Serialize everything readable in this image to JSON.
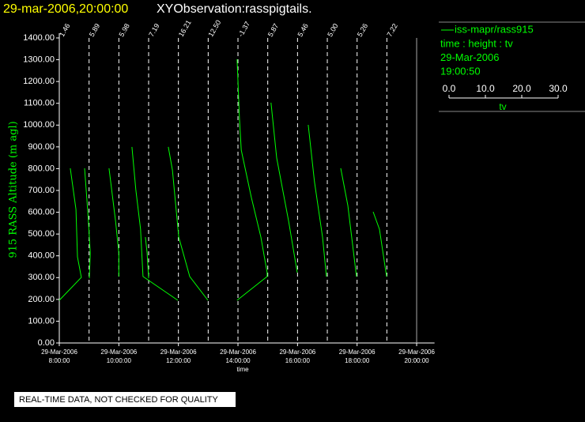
{
  "chart_data": {
    "type": "line",
    "title": "29-mar-2006,20:00:00",
    "subtitle": "XYObservation:rasspigtails.",
    "y_label": "915 RASS Altitude (m agl)",
    "x_label": "time",
    "footer": "REAL-TIME DATA, NOT CHECKED FOR QUALITY",
    "xlim": [
      8,
      20.6
    ],
    "ylim": [
      0,
      1400
    ],
    "xticks": [
      {
        "value": 8,
        "label": "29-Mar-2006 8:00:00"
      },
      {
        "value": 10,
        "label": "29-Mar-2006 10:00:00"
      },
      {
        "value": 12,
        "label": "29-Mar-2006 12:00:00"
      },
      {
        "value": 14,
        "label": "29-Mar-2006 14:00:00"
      },
      {
        "value": 16,
        "label": "29-Mar-2006 16:00:00"
      },
      {
        "value": 18,
        "label": "29-Mar-2006 18:00:00"
      },
      {
        "value": 20,
        "label": "29-Mar-2006 20:00:00"
      }
    ],
    "yticks": [
      {
        "value": 0,
        "label": "0.00"
      },
      {
        "value": 100,
        "label": "100.00"
      },
      {
        "value": 200,
        "label": "200.00"
      },
      {
        "value": 300,
        "label": "300.00"
      },
      {
        "value": 400,
        "label": "400.00"
      },
      {
        "value": 500,
        "label": "500.00"
      },
      {
        "value": 600,
        "label": "600.00"
      },
      {
        "value": 700,
        "label": "700.00"
      },
      {
        "value": 800,
        "label": "800.00"
      },
      {
        "value": 900,
        "label": "900.00"
      },
      {
        "value": 1000,
        "label": "1000.00"
      },
      {
        "value": 1100,
        "label": "1100.00"
      },
      {
        "value": 1200,
        "label": "1200.00"
      },
      {
        "value": 1300,
        "label": "1300.00"
      },
      {
        "value": 1400,
        "label": "1400.00"
      }
    ],
    "markers": [
      {
        "x": 8,
        "label": "1.46"
      },
      {
        "x": 9,
        "label": "5.89"
      },
      {
        "x": 10,
        "label": "5.98"
      },
      {
        "x": 11,
        "label": "7.19"
      },
      {
        "x": 12,
        "label": "16.21"
      },
      {
        "x": 13,
        "label": "12.50"
      },
      {
        "x": 14,
        "label": "-1.37"
      },
      {
        "x": 15,
        "label": "5.87"
      },
      {
        "x": 16,
        "label": "5.46"
      },
      {
        "x": 17,
        "label": "5.00"
      },
      {
        "x": 18,
        "label": "5.26"
      },
      {
        "x": 19,
        "label": "7.22"
      }
    ],
    "end_line": 20,
    "series": [
      {
        "name": "iss-mapr/rass915",
        "color": "#00ff00",
        "x": [
          8.0,
          8.74,
          8.61,
          8.56,
          8.37,
          null,
          9.01,
          9.04,
          8.96,
          8.85,
          null,
          10.0,
          10.0,
          9.89,
          9.67,
          null,
          10.44,
          10.57,
          10.73,
          10.81,
          11.98,
          null,
          11.0,
          10.95,
          10.89,
          null,
          11.66,
          11.8,
          12.01,
          12.38,
          12.99,
          null,
          13.97,
          14.98,
          14.98,
          14.77,
          14.45,
          14.11,
          14.05,
          13.97,
          null,
          15.11,
          15.3,
          15.7,
          15.99,
          null,
          16.36,
          16.57,
          16.84,
          16.97,
          null,
          17.45,
          17.69,
          17.98,
          null,
          18.54,
          18.75,
          18.99
        ],
        "values": [
          196,
          301,
          395,
          613,
          802,
          null,
          297,
          413,
          595,
          802,
          null,
          305,
          413,
          559,
          802,
          null,
          900,
          704,
          522,
          305,
          196,
          null,
          297,
          413,
          486,
          null,
          900,
          794,
          486,
          305,
          196,
          null,
          196,
          305,
          323,
          486,
          667,
          885,
          1030,
          1302,
          null,
          1103,
          849,
          559,
          323,
          null,
          1001,
          740,
          486,
          305,
          null,
          802,
          631,
          305,
          null,
          602,
          522,
          305
        ]
      }
    ],
    "legend_lines": [
      "time : height : tv",
      "29-Mar-2006",
      "19:00:50"
    ],
    "legend_scale": {
      "ticks": [
        {
          "value": 0,
          "label": "0.0"
        },
        {
          "value": 10,
          "label": "10.0"
        },
        {
          "value": 20,
          "label": "20.0"
        },
        {
          "value": 30,
          "label": "30.0"
        }
      ],
      "lim": [
        0,
        30
      ],
      "label": "tv"
    }
  }
}
